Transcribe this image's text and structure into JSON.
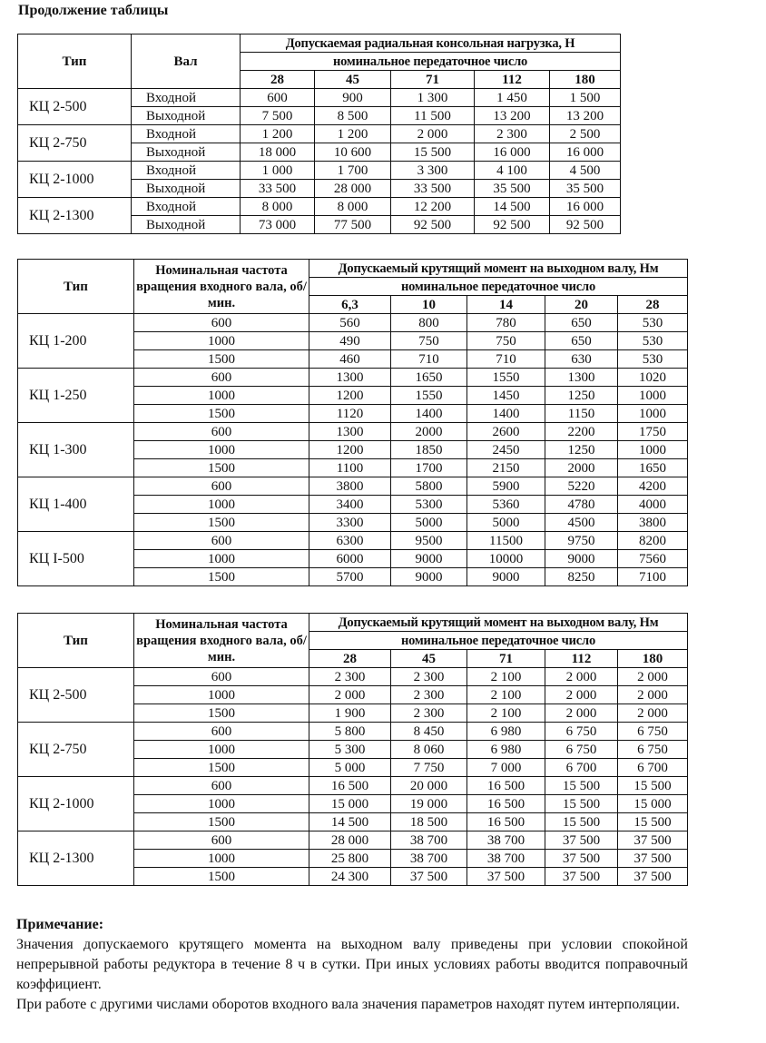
{
  "title": "Продолжение таблицы",
  "table1": {
    "col_type": "Тип",
    "col_shaft": "Вал",
    "group_header": "Допускаемая радиальная консольная нагрузка, Н",
    "sub_header": "номинальное передаточное число",
    "ratios": [
      "28",
      "45",
      "71",
      "112",
      "180"
    ],
    "groups": [
      {
        "type": "КЦ 2-500",
        "rows": [
          {
            "shaft": "Входной",
            "values": [
              "600",
              "900",
              "1 300",
              "1 450",
              "1 500"
            ]
          },
          {
            "shaft": "Выходной",
            "values": [
              "7 500",
              "8 500",
              "11 500",
              "13 200",
              "13 200"
            ]
          }
        ]
      },
      {
        "type": "КЦ 2-750",
        "rows": [
          {
            "shaft": "Входной",
            "values": [
              "1 200",
              "1 200",
              "2 000",
              "2 300",
              "2 500"
            ]
          },
          {
            "shaft": "Выходной",
            "values": [
              "18 000",
              "10 600",
              "15 500",
              "16 000",
              "16 000"
            ]
          }
        ]
      },
      {
        "type": "КЦ 2-1000",
        "rows": [
          {
            "shaft": "Входной",
            "values": [
              "1 000",
              "1 700",
              "3 300",
              "4 100",
              "4 500"
            ]
          },
          {
            "shaft": "Выходной",
            "values": [
              "33 500",
              "28 000",
              "33 500",
              "35 500",
              "35 500"
            ]
          }
        ]
      },
      {
        "type": "КЦ 2-1300",
        "rows": [
          {
            "shaft": "Входной",
            "values": [
              "8 000",
              "8 000",
              "12 200",
              "14 500",
              "16 000"
            ]
          },
          {
            "shaft": "Выходной",
            "values": [
              "73 000",
              "77 500",
              "92 500",
              "92 500",
              "92 500"
            ]
          }
        ]
      }
    ]
  },
  "table2": {
    "col_type": "Тип",
    "col_speed": "Номинальная частота вращения входного вала, об/мин.",
    "group_header": "Допускаемый крутящий момент на выходном валу, Нм",
    "sub_header": "номинальное передаточное число",
    "ratios": [
      "6,3",
      "10",
      "14",
      "20",
      "28"
    ],
    "groups": [
      {
        "type": "КЦ 1-200",
        "rows": [
          {
            "speed": "600",
            "values": [
              "560",
              "800",
              "780",
              "650",
              "530"
            ]
          },
          {
            "speed": "1000",
            "values": [
              "490",
              "750",
              "750",
              "650",
              "530"
            ]
          },
          {
            "speed": "1500",
            "values": [
              "460",
              "710",
              "710",
              "630",
              "530"
            ]
          }
        ]
      },
      {
        "type": "КЦ 1-250",
        "rows": [
          {
            "speed": "600",
            "values": [
              "1300",
              "1650",
              "1550",
              "1300",
              "1020"
            ]
          },
          {
            "speed": "1000",
            "values": [
              "1200",
              "1550",
              "1450",
              "1250",
              "1000"
            ]
          },
          {
            "speed": "1500",
            "values": [
              "1120",
              "1400",
              "1400",
              "1150",
              "1000"
            ]
          }
        ]
      },
      {
        "type": "КЦ 1-300",
        "rows": [
          {
            "speed": "600",
            "values": [
              "1300",
              "2000",
              "2600",
              "2200",
              "1750"
            ]
          },
          {
            "speed": "1000",
            "values": [
              "1200",
              "1850",
              "2450",
              "1250",
              "1000"
            ]
          },
          {
            "speed": "1500",
            "values": [
              "1100",
              "1700",
              "2150",
              "2000",
              "1650"
            ]
          }
        ]
      },
      {
        "type": "КЦ 1-400",
        "rows": [
          {
            "speed": "600",
            "values": [
              "3800",
              "5800",
              "5900",
              "5220",
              "4200"
            ]
          },
          {
            "speed": "1000",
            "values": [
              "3400",
              "5300",
              "5360",
              "4780",
              "4000"
            ]
          },
          {
            "speed": "1500",
            "values": [
              "3300",
              "5000",
              "5000",
              "4500",
              "3800"
            ]
          }
        ]
      },
      {
        "type": "КЦ I-500",
        "rows": [
          {
            "speed": "600",
            "values": [
              "6300",
              "9500",
              "11500",
              "9750",
              "8200"
            ]
          },
          {
            "speed": "1000",
            "values": [
              "6000",
              "9000",
              "10000",
              "9000",
              "7560"
            ]
          },
          {
            "speed": "1500",
            "values": [
              "5700",
              "9000",
              "9000",
              "8250",
              "7100"
            ]
          }
        ]
      }
    ]
  },
  "table3": {
    "col_type": "Тип",
    "col_speed": "Номинальная частота вращения входного вала, об/мин.",
    "group_header": "Допускаемый крутящий момент на выходном валу, Нм",
    "sub_header": "номинальное передаточное число",
    "ratios": [
      "28",
      "45",
      "71",
      "112",
      "180"
    ],
    "groups": [
      {
        "type": "КЦ 2-500",
        "rows": [
          {
            "speed": "600",
            "values": [
              "2 300",
              "2 300",
              "2 100",
              "2 000",
              "2 000"
            ]
          },
          {
            "speed": "1000",
            "values": [
              "2 000",
              "2 300",
              "2 100",
              "2 000",
              "2 000"
            ]
          },
          {
            "speed": "1500",
            "values": [
              "1 900",
              "2 300",
              "2 100",
              "2 000",
              "2 000"
            ]
          }
        ]
      },
      {
        "type": "КЦ 2-750",
        "rows": [
          {
            "speed": "600",
            "values": [
              "5 800",
              "8 450",
              "6 980",
              "6 750",
              "6 750"
            ]
          },
          {
            "speed": "1000",
            "values": [
              "5 300",
              "8 060",
              "6 980",
              "6 750",
              "6 750"
            ]
          },
          {
            "speed": "1500",
            "values": [
              "5 000",
              "7 750",
              "7 000",
              "6 700",
              "6 700"
            ]
          }
        ]
      },
      {
        "type": "КЦ 2-1000",
        "rows": [
          {
            "speed": "600",
            "values": [
              "16 500",
              "20 000",
              "16 500",
              "15 500",
              "15 500"
            ]
          },
          {
            "speed": "1000",
            "values": [
              "15 000",
              "19 000",
              "16 500",
              "15 500",
              "15 000"
            ]
          },
          {
            "speed": "1500",
            "values": [
              "14 500",
              "18 500",
              "16 500",
              "15 500",
              "15 500"
            ]
          }
        ]
      },
      {
        "type": "КЦ 2-1300",
        "rows": [
          {
            "speed": "600",
            "values": [
              "28 000",
              "38 700",
              "38 700",
              "37 500",
              "37 500"
            ]
          },
          {
            "speed": "1000",
            "values": [
              "25 800",
              "38 700",
              "38 700",
              "37 500",
              "37 500"
            ]
          },
          {
            "speed": "1500",
            "values": [
              "24 300",
              "37 500",
              "37 500",
              "37 500",
              "37 500"
            ]
          }
        ]
      }
    ]
  },
  "note": {
    "heading": "Примечание:",
    "paragraphs": [
      "Значения допускаемого крутящего момента на выходном валу приведены при условии спокойной непрерывной работы редуктора в течение 8 ч в сутки. При иных условиях работы вводится поправочный коэффициент.",
      "При работе с другими числами оборотов входного вала значения параметров находят путем интерполяции."
    ]
  }
}
